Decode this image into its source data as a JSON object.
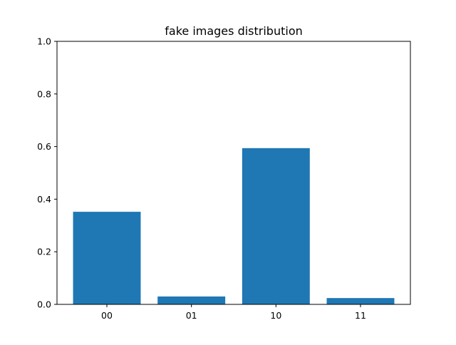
{
  "chart_data": {
    "type": "bar",
    "title": "fake images distribution",
    "xlabel": "",
    "ylabel": "",
    "categories": [
      "00",
      "01",
      "10",
      "11"
    ],
    "values": [
      0.352,
      0.03,
      0.594,
      0.024
    ],
    "ylim": [
      0,
      1.0
    ],
    "yticks": [
      0.0,
      0.2,
      0.4,
      0.6,
      0.8,
      1.0
    ],
    "ytick_labels": [
      "0.0",
      "0.2",
      "0.4",
      "0.6",
      "0.8",
      "1.0"
    ],
    "grid": false,
    "legend": "none",
    "bar_color": "#1f77b4"
  }
}
